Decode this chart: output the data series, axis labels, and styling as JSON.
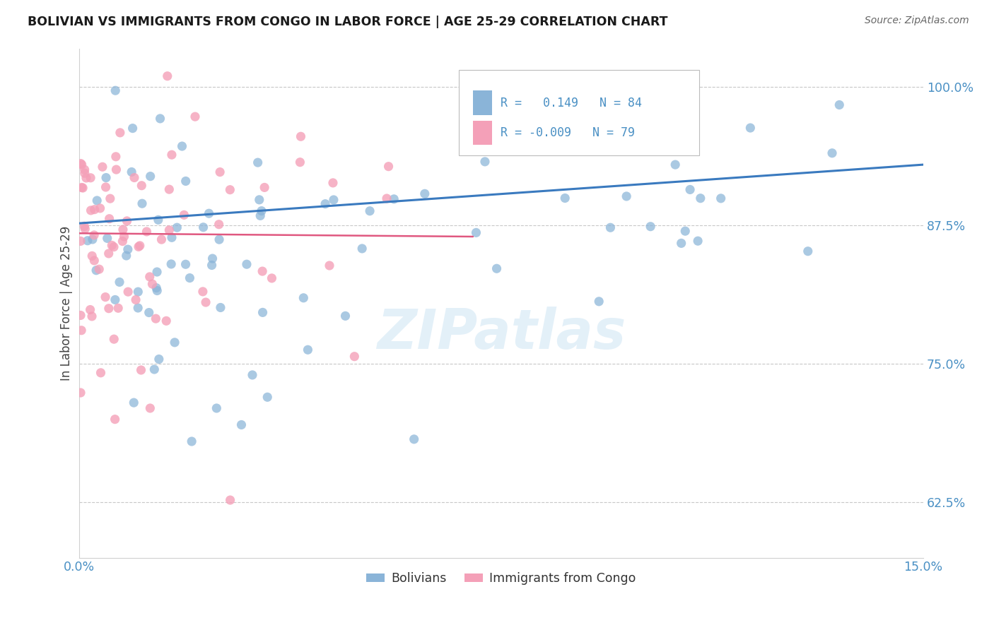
{
  "title": "BOLIVIAN VS IMMIGRANTS FROM CONGO IN LABOR FORCE | AGE 25-29 CORRELATION CHART",
  "source": "Source: ZipAtlas.com",
  "ylabel": "In Labor Force | Age 25-29",
  "xmin": 0.0,
  "xmax": 0.15,
  "ymin": 0.575,
  "ymax": 1.035,
  "blue_color": "#8ab4d8",
  "pink_color": "#f4a0b8",
  "blue_line_color": "#3a7abf",
  "pink_line_color": "#e05880",
  "tick_color": "#4a90c4",
  "R_blue": 0.149,
  "N_blue": 84,
  "R_pink": -0.009,
  "N_pink": 79,
  "blue_line_x0": 0.0,
  "blue_line_x1": 0.15,
  "blue_line_y0": 0.877,
  "blue_line_y1": 0.93,
  "pink_line_x0": 0.0,
  "pink_line_x1": 0.07,
  "pink_line_y0": 0.868,
  "pink_line_y1": 0.865,
  "watermark": "ZIPatlas",
  "legend_label1": "Bolivians",
  "legend_label2": "Immigrants from Congo"
}
